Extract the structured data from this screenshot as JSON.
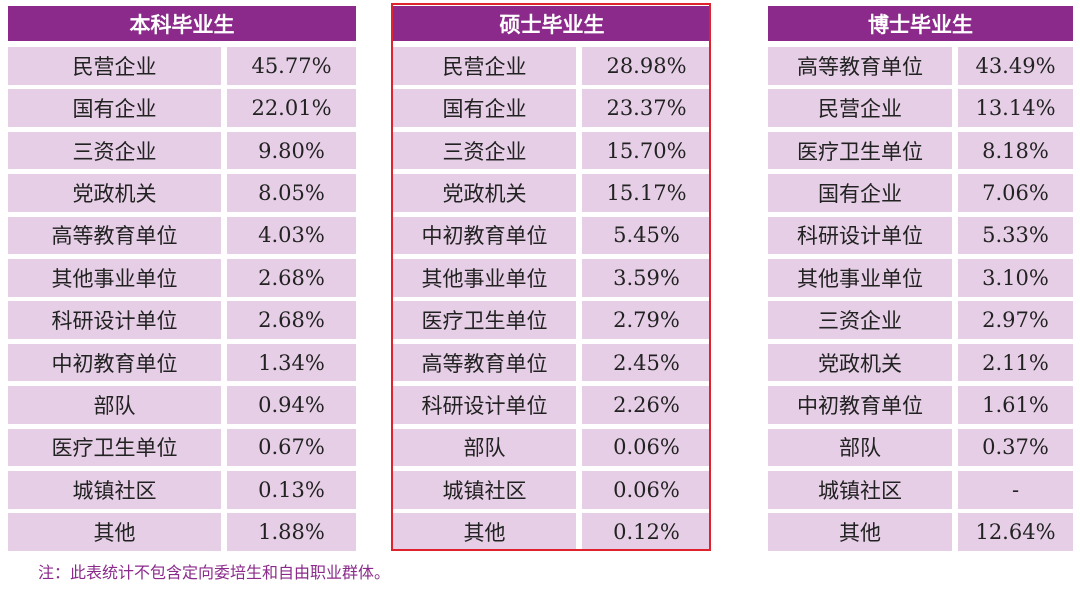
{
  "tables": [
    {
      "title": "本科毕业生",
      "rows": [
        {
          "unit": "民营企业",
          "pct": "45.77%"
        },
        {
          "unit": "国有企业",
          "pct": "22.01%"
        },
        {
          "unit": "三资企业",
          "pct": "9.80%"
        },
        {
          "unit": "党政机关",
          "pct": "8.05%"
        },
        {
          "unit": "高等教育单位",
          "pct": "4.03%"
        },
        {
          "unit": "其他事业单位",
          "pct": "2.68%"
        },
        {
          "unit": "科研设计单位",
          "pct": "2.68%"
        },
        {
          "unit": "中初教育单位",
          "pct": "1.34%"
        },
        {
          "unit": "部队",
          "pct": "0.94%"
        },
        {
          "unit": "医疗卫生单位",
          "pct": "0.67%"
        },
        {
          "unit": "城镇社区",
          "pct": "0.13%"
        },
        {
          "unit": "其他",
          "pct": "1.88%"
        }
      ]
    },
    {
      "title": "硕士毕业生",
      "rows": [
        {
          "unit": "民营企业",
          "pct": "28.98%"
        },
        {
          "unit": "国有企业",
          "pct": "23.37%"
        },
        {
          "unit": "三资企业",
          "pct": "15.70%"
        },
        {
          "unit": "党政机关",
          "pct": "15.17%"
        },
        {
          "unit": "中初教育单位",
          "pct": "5.45%"
        },
        {
          "unit": "其他事业单位",
          "pct": "3.59%"
        },
        {
          "unit": "医疗卫生单位",
          "pct": "2.79%"
        },
        {
          "unit": "高等教育单位",
          "pct": "2.45%"
        },
        {
          "unit": "科研设计单位",
          "pct": "2.26%"
        },
        {
          "unit": "部队",
          "pct": "0.06%"
        },
        {
          "unit": "城镇社区",
          "pct": "0.06%"
        },
        {
          "unit": "其他",
          "pct": "0.12%"
        }
      ]
    },
    {
      "title": "博士毕业生",
      "rows": [
        {
          "unit": "高等教育单位",
          "pct": "43.49%"
        },
        {
          "unit": "民营企业",
          "pct": "13.14%"
        },
        {
          "unit": "医疗卫生单位",
          "pct": "8.18%"
        },
        {
          "unit": "国有企业",
          "pct": "7.06%"
        },
        {
          "unit": "科研设计单位",
          "pct": "5.33%"
        },
        {
          "unit": "其他事业单位",
          "pct": "3.10%"
        },
        {
          "unit": "三资企业",
          "pct": "2.97%"
        },
        {
          "unit": "党政机关",
          "pct": "2.11%"
        },
        {
          "unit": "中初教育单位",
          "pct": "1.61%"
        },
        {
          "unit": "部队",
          "pct": "0.37%"
        },
        {
          "unit": "城镇社区",
          "pct": "-"
        },
        {
          "unit": "其他",
          "pct": "12.64%"
        }
      ]
    }
  ],
  "note": "注：此表统计不包含定向委培生和自由职业群体。",
  "colors": {
    "header_bg": "#8b2a8b",
    "cell_bg": "#e6cfe6",
    "highlight_border": "#e0222d",
    "note_text": "#8b2a8b"
  }
}
